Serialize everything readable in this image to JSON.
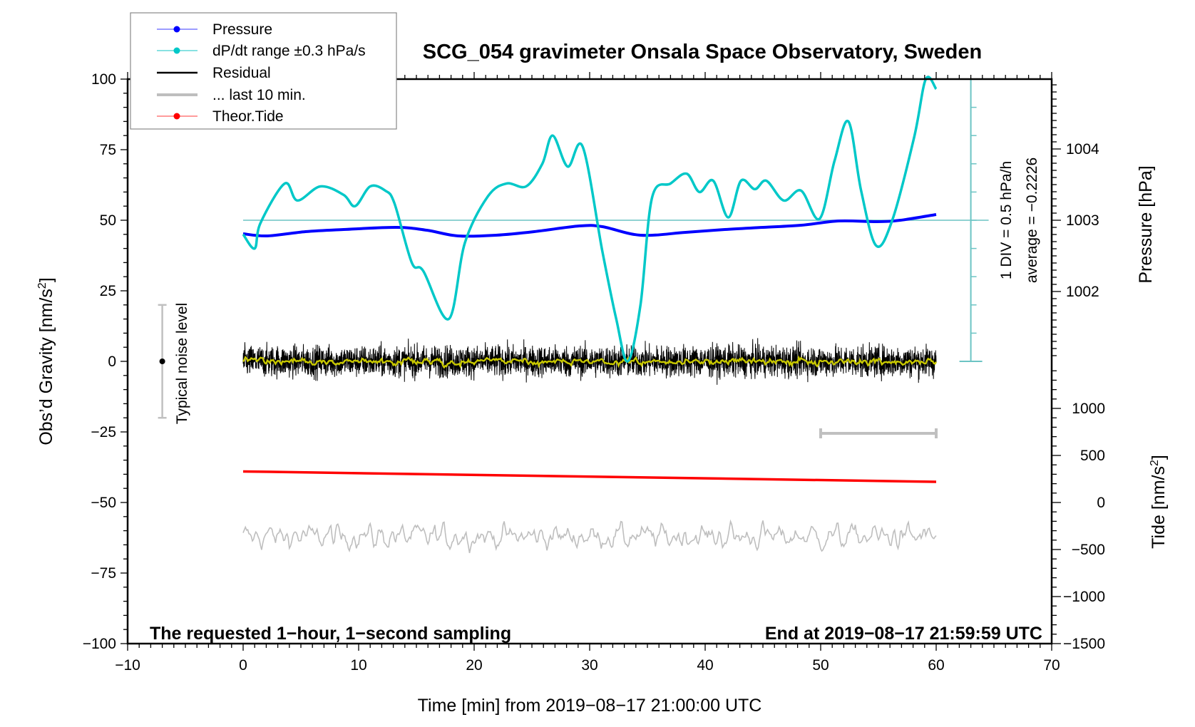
{
  "chart_data": {
    "type": "line",
    "title": "SCG_054 gravimeter Onsala Space Observatory, Sweden",
    "xlabel": "Time [min] from 2019−08−17 21:00:00 UTC",
    "ylabel": "Obs’d Gravity [nm/s",
    "ylabel_sup": "2",
    "ylabel_end": "]",
    "y2label": "Pressure [hPa]",
    "y3label": "Tide [nm/s",
    "y3label_sup": "2",
    "y3label_end": "]",
    "xlim": [
      -10,
      70
    ],
    "ylim": [
      -100,
      100
    ],
    "pressure_ref": 1003,
    "pressure_scale_per_hpa": 25.25,
    "tide_zero_gravity": -50,
    "tide_scale_per_unit": 0.03333,
    "x_ticks": [
      -10,
      0,
      10,
      20,
      30,
      40,
      50,
      60,
      70
    ],
    "x_tick_labels": [
      "−10",
      "0",
      "10",
      "20",
      "30",
      "40",
      "50",
      "60",
      "70"
    ],
    "y_ticks": [
      100,
      75,
      50,
      25,
      0,
      -25,
      -50,
      -75,
      -100
    ],
    "y_tick_labels": [
      "100",
      "75",
      "50",
      "25",
      "0",
      "−25",
      "−50",
      "−75",
      "−100"
    ],
    "pressure_ticks": [
      1004,
      1003,
      1002
    ],
    "pressure_tick_labels": [
      "1004",
      "1003",
      "1002"
    ],
    "tide_ticks": [
      1000,
      500,
      0,
      -500,
      -1000,
      -1500
    ],
    "tide_tick_labels": [
      "1000",
      "500",
      "0",
      "−500",
      "−1000",
      "−1500"
    ],
    "legend": {
      "position": "top-left",
      "entries": [
        {
          "label": "Pressure",
          "color": "#0000ff",
          "marker": true
        },
        {
          "label": "dP/dt range ±0.3 hPa/s",
          "color": "#00c8c8",
          "marker": true
        },
        {
          "label": "Residual",
          "color": "#000000",
          "marker": false
        },
        {
          "label": "... last 10 min.",
          "color": "#bebebe",
          "marker": false
        },
        {
          "label": "Theor.Tide",
          "color": "#ff0000",
          "marker": true
        }
      ]
    },
    "series": [
      {
        "name": "Pressure",
        "axis": "pressure",
        "color": "#0000ff",
        "x": [
          0,
          2.1,
          5.4,
          8.7,
          13.3,
          15.9,
          18.6,
          21.9,
          25.2,
          29.1,
          31.1,
          34.4,
          38.3,
          41.7,
          45.0,
          48.3,
          51.6,
          54.9,
          56.9,
          60.0
        ],
        "y": [
          1002.81,
          1002.78,
          1002.84,
          1002.87,
          1002.9,
          1002.86,
          1002.78,
          1002.79,
          1002.84,
          1002.92,
          1002.91,
          1002.79,
          1002.83,
          1002.87,
          1002.9,
          1002.93,
          1002.99,
          1002.98,
          1003.0,
          1003.08
        ]
      },
      {
        "name": "dP/dt range ±0.3 hPa/s",
        "axis": "gravity",
        "color": "#00c8c8",
        "x": [
          0,
          1.0,
          1.5,
          3.6,
          4.7,
          6.7,
          8.7,
          9.7,
          11.0,
          12.3,
          13.1,
          14.6,
          15.6,
          17.8,
          19.2,
          21.2,
          22.8,
          24.5,
          25.9,
          26.8,
          28.1,
          29.4,
          31.1,
          32.3,
          33.3,
          34.4,
          35.4,
          37.0,
          38.4,
          39.5,
          40.7,
          42.0,
          43.1,
          44.3,
          45.3,
          46.8,
          48.3,
          49.9,
          51.2,
          52.4,
          53.5,
          54.8,
          56.2,
          58.1,
          59.1,
          60.0
        ],
        "y": [
          45,
          40,
          49,
          63,
          57,
          62,
          59,
          55,
          62,
          60.5,
          56,
          35,
          32,
          15,
          42,
          58.5,
          63,
          62,
          70,
          80,
          69,
          76,
          39,
          15,
          0,
          20,
          58,
          63,
          66.5,
          60,
          64,
          51,
          64,
          61,
          64,
          57,
          60.5,
          50.5,
          71,
          85,
          60.5,
          41,
          50,
          79.5,
          100,
          96.5
        ]
      },
      {
        "name": "Theor.Tide",
        "axis": "tide",
        "color": "#ff0000",
        "x": [
          0,
          60
        ],
        "y": [
          330,
          220
        ]
      },
      {
        "name": "Residual",
        "axis": "gravity",
        "color": "#000000",
        "x_range": [
          0,
          60
        ],
        "samples": 3600,
        "offset": 0,
        "amplitude": 10
      },
      {
        "name": "Residual smoothed",
        "axis": "gravity",
        "color": "#c8c800",
        "x_range": [
          0,
          60
        ],
        "offset": 0,
        "amplitude": 1.5
      },
      {
        "name": "... last 10 min.",
        "axis": "gravity",
        "color": "#bebebe",
        "x_range": [
          0,
          60
        ],
        "samples": 600,
        "offset": -62,
        "amplitude": 9
      }
    ],
    "dpdt_scale": {
      "label": "1 DIV = 0.5 hPa/h",
      "average_label": "average = −0.2226",
      "baseline": 50,
      "range": [
        0,
        100
      ],
      "x": 63,
      "div": 10
    },
    "noise_level": {
      "label": "Typical noise level",
      "x": -7,
      "center": 0,
      "range": [
        -20,
        20
      ]
    },
    "last10_marker": {
      "x": [
        50,
        60
      ],
      "y": -25.5
    },
    "annotations": {
      "left": "The requested 1−hour, 1−second sampling",
      "right": "End at 2019−08−17 21:59:59 UTC"
    }
  }
}
